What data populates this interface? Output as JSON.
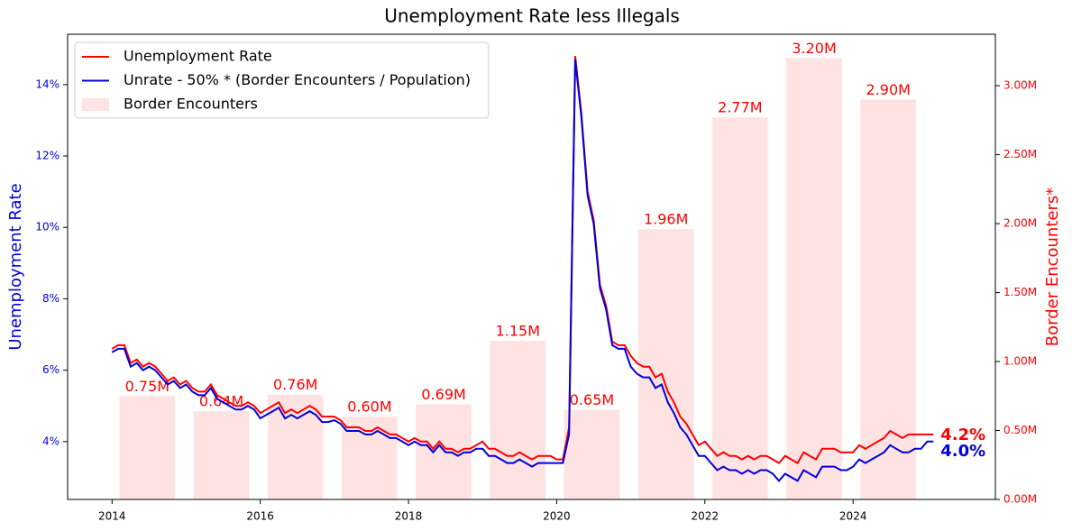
{
  "chart_data": {
    "type": "line",
    "title": "Unemployment Rate less Illegals",
    "ylabel": "Unemployment Rate",
    "y2label": "Border Encounters*",
    "legend": "upper left",
    "grid": false,
    "x": [
      2014,
      2014.083,
      2014.167,
      2014.25,
      2014.333,
      2014.417,
      2014.5,
      2014.583,
      2014.667,
      2014.75,
      2014.833,
      2014.917,
      2015,
      2015.083,
      2015.167,
      2015.25,
      2015.333,
      2015.417,
      2015.5,
      2015.583,
      2015.667,
      2015.75,
      2015.833,
      2015.917,
      2016,
      2016.083,
      2016.167,
      2016.25,
      2016.333,
      2016.417,
      2016.5,
      2016.583,
      2016.667,
      2016.75,
      2016.833,
      2016.917,
      2017,
      2017.083,
      2017.167,
      2017.25,
      2017.333,
      2017.417,
      2017.5,
      2017.583,
      2017.667,
      2017.75,
      2017.833,
      2017.917,
      2018,
      2018.083,
      2018.167,
      2018.25,
      2018.333,
      2018.417,
      2018.5,
      2018.583,
      2018.667,
      2018.75,
      2018.833,
      2018.917,
      2019,
      2019.083,
      2019.167,
      2019.25,
      2019.333,
      2019.417,
      2019.5,
      2019.583,
      2019.667,
      2019.75,
      2019.833,
      2019.917,
      2020,
      2020.083,
      2020.167,
      2020.25,
      2020.333,
      2020.417,
      2020.5,
      2020.583,
      2020.667,
      2020.75,
      2020.833,
      2020.917,
      2021,
      2021.083,
      2021.167,
      2021.25,
      2021.333,
      2021.417,
      2021.5,
      2021.583,
      2021.667,
      2021.75,
      2021.833,
      2021.917,
      2022,
      2022.083,
      2022.167,
      2022.25,
      2022.333,
      2022.417,
      2022.5,
      2022.583,
      2022.667,
      2022.75,
      2022.833,
      2022.917,
      2023,
      2023.083,
      2023.167,
      2023.25,
      2023.333,
      2023.417,
      2023.5,
      2023.583,
      2023.667,
      2023.75,
      2023.833,
      2023.917,
      2024,
      2024.083,
      2024.167,
      2024.25,
      2024.333,
      2024.417,
      2024.5,
      2024.583,
      2024.667,
      2024.75,
      2024.833,
      2024.917,
      2025,
      2025.083
    ],
    "xlim": [
      2013.4,
      2025.92
    ],
    "xticks": [
      2014,
      2016,
      2018,
      2020,
      2022,
      2024
    ],
    "ylim": [
      2.38,
      15.41
    ],
    "yticks": [
      {
        "value": 4,
        "label": "4%"
      },
      {
        "value": 6,
        "label": "6%"
      },
      {
        "value": 8,
        "label": "8%"
      },
      {
        "value": 10,
        "label": "10%"
      },
      {
        "value": 12,
        "label": "12%"
      },
      {
        "value": 14,
        "label": "14%"
      }
    ],
    "y2lim": [
      0,
      3.373
    ],
    "y2ticks": [
      {
        "value": 0,
        "label": "0.00M"
      },
      {
        "value": 0.5,
        "label": "0.50M"
      },
      {
        "value": 1,
        "label": "1.00M"
      },
      {
        "value": 1.5,
        "label": "1.50M"
      },
      {
        "value": 2,
        "label": "2.00M"
      },
      {
        "value": 2.5,
        "label": "2.50M"
      },
      {
        "value": 3,
        "label": "3.00M"
      }
    ],
    "series": [
      {
        "name": "Unemployment Rate",
        "type": "line",
        "color": "#ff0000",
        "end_label": "4.2%",
        "values": [
          6.6,
          6.7,
          6.7,
          6.2,
          6.3,
          6.1,
          6.2,
          6.1,
          5.9,
          5.7,
          5.8,
          5.6,
          5.7,
          5.5,
          5.4,
          5.4,
          5.6,
          5.3,
          5.2,
          5.1,
          5.0,
          5.0,
          5.1,
          5.0,
          4.8,
          4.9,
          5.0,
          5.1,
          4.8,
          4.9,
          4.8,
          4.9,
          5.0,
          4.9,
          4.7,
          4.7,
          4.7,
          4.6,
          4.4,
          4.4,
          4.4,
          4.3,
          4.3,
          4.4,
          4.3,
          4.2,
          4.2,
          4.1,
          4.0,
          4.1,
          4.0,
          4.0,
          3.8,
          4.0,
          3.8,
          3.8,
          3.7,
          3.8,
          3.8,
          3.9,
          4.0,
          3.8,
          3.8,
          3.7,
          3.6,
          3.6,
          3.7,
          3.6,
          3.5,
          3.6,
          3.6,
          3.6,
          3.5,
          3.5,
          4.4,
          14.8,
          13.2,
          11.0,
          10.2,
          8.4,
          7.8,
          6.8,
          6.7,
          6.7,
          6.4,
          6.2,
          6.1,
          6.1,
          5.8,
          5.9,
          5.4,
          5.1,
          4.7,
          4.5,
          4.2,
          3.9,
          4.0,
          3.8,
          3.6,
          3.7,
          3.6,
          3.6,
          3.5,
          3.6,
          3.5,
          3.6,
          3.6,
          3.5,
          3.4,
          3.6,
          3.5,
          3.4,
          3.7,
          3.6,
          3.5,
          3.8,
          3.8,
          3.8,
          3.7,
          3.7,
          3.7,
          3.9,
          3.8,
          3.9,
          4.0,
          4.1,
          4.3,
          4.2,
          4.1,
          4.2,
          4.2,
          4.2,
          4.2,
          4.2
        ]
      },
      {
        "name": "Unrate - 50% * (Border Encounters / Population)",
        "type": "line",
        "color": "#0000dd",
        "end_label": "4.0%",
        "values": [
          6.5,
          6.6,
          6.6,
          6.1,
          6.2,
          6.0,
          6.1,
          6.0,
          5.8,
          5.6,
          5.7,
          5.5,
          5.6,
          5.4,
          5.3,
          5.3,
          5.5,
          5.2,
          5.1,
          5.0,
          4.9,
          4.9,
          5.0,
          4.9,
          4.65,
          4.75,
          4.85,
          4.95,
          4.65,
          4.75,
          4.65,
          4.75,
          4.85,
          4.75,
          4.55,
          4.55,
          4.6,
          4.5,
          4.3,
          4.3,
          4.3,
          4.2,
          4.2,
          4.3,
          4.2,
          4.1,
          4.1,
          4.0,
          3.9,
          4.0,
          3.9,
          3.9,
          3.7,
          3.9,
          3.7,
          3.7,
          3.6,
          3.7,
          3.7,
          3.8,
          3.8,
          3.6,
          3.6,
          3.5,
          3.4,
          3.4,
          3.5,
          3.4,
          3.3,
          3.4,
          3.4,
          3.4,
          3.4,
          3.4,
          4.2,
          14.7,
          13.1,
          10.9,
          10.1,
          8.3,
          7.7,
          6.7,
          6.6,
          6.6,
          6.1,
          5.9,
          5.8,
          5.8,
          5.5,
          5.6,
          5.1,
          4.8,
          4.4,
          4.2,
          3.9,
          3.6,
          3.6,
          3.4,
          3.2,
          3.3,
          3.2,
          3.2,
          3.1,
          3.2,
          3.1,
          3.2,
          3.2,
          3.1,
          2.9,
          3.1,
          3.0,
          2.9,
          3.2,
          3.1,
          3.0,
          3.3,
          3.3,
          3.3,
          3.2,
          3.2,
          3.3,
          3.5,
          3.4,
          3.5,
          3.6,
          3.7,
          3.9,
          3.8,
          3.7,
          3.7,
          3.8,
          3.8,
          4.0,
          4.0
        ]
      },
      {
        "name": "Border Encounters",
        "type": "bar",
        "axis": "y2",
        "color": "#ffe2e2",
        "x": [
          2014,
          2015,
          2016,
          2017,
          2018,
          2019,
          2020,
          2021,
          2022,
          2023,
          2024
        ],
        "values": [
          0.75,
          0.64,
          0.76,
          0.6,
          0.69,
          1.15,
          0.65,
          1.96,
          2.77,
          3.2,
          2.9
        ],
        "value_labels": [
          "0.75M",
          "0.64M",
          "0.76M",
          "0.60M",
          "0.69M",
          "1.15M",
          "0.65M",
          "1.96M",
          "2.77M",
          "3.20M",
          "2.90M"
        ]
      }
    ]
  }
}
